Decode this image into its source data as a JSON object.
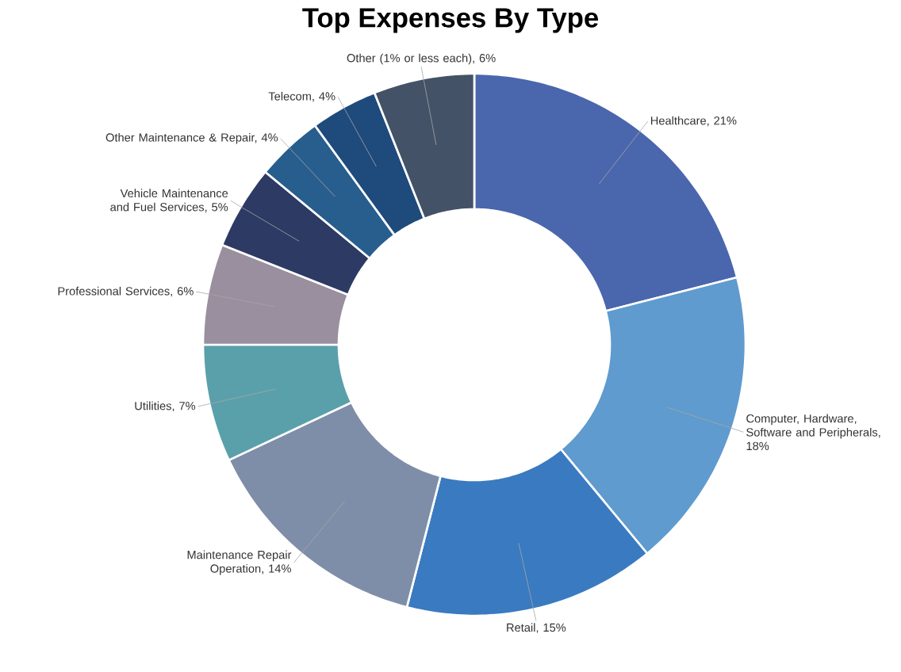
{
  "chart_data": {
    "type": "donut",
    "title": "Top Expenses By Type",
    "categories": [
      "Healthcare, 21%",
      "Computer, Hardware, Software and Peripherals, 18%",
      "Retail, 15%",
      "Maintenance Repair Operation, 14%",
      "Utilities, 7%",
      "Professional Services, 6%",
      "Vehicle Maintenance and Fuel Services, 5%",
      "Other Maintenance & Repair, 4%",
      "Telecom, 4%",
      "Other (1% or less each), 6%"
    ],
    "values": [
      21,
      18,
      15,
      14,
      7,
      6,
      5,
      4,
      4,
      6
    ],
    "colors": [
      "#4a66ad",
      "#5f9bce",
      "#3a7ac0",
      "#7f8ea8",
      "#5aa0aa",
      "#9a8f9e",
      "#2d3a64",
      "#285e8e",
      "#1f4a7c",
      "#435266"
    ]
  }
}
